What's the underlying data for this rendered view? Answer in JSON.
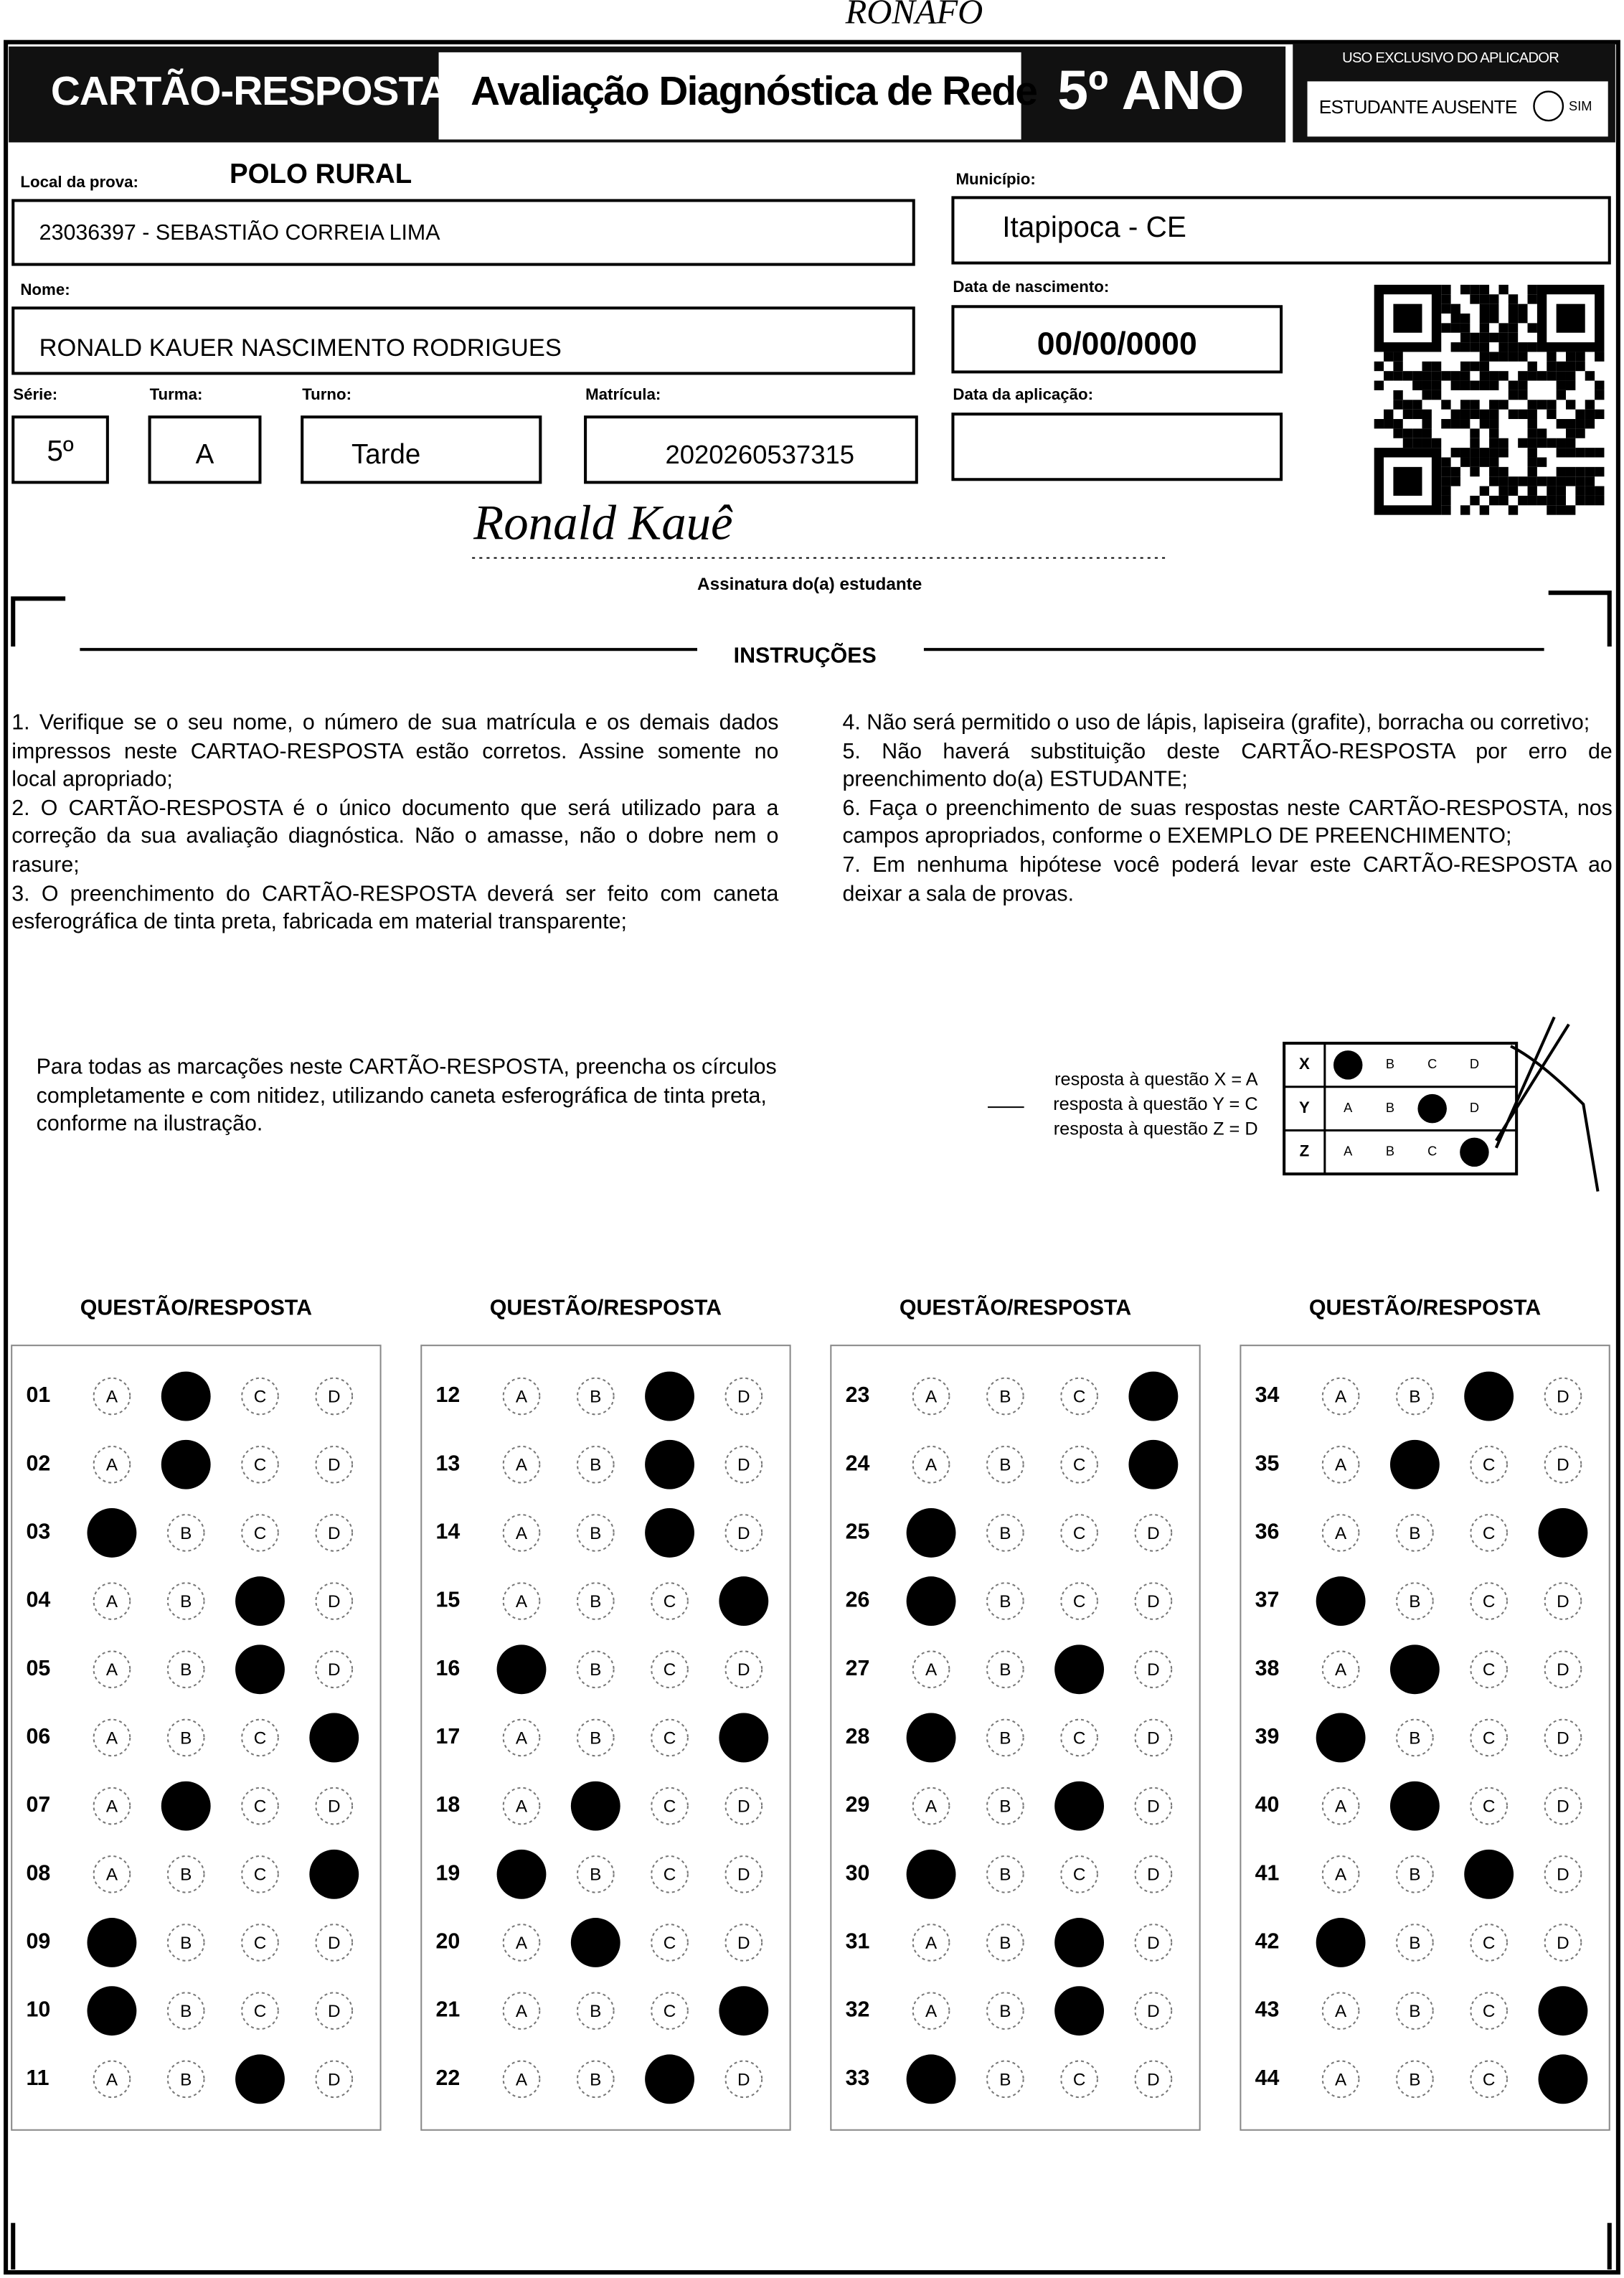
{
  "handwriting": {
    "top": "RONAFO",
    "signature": "Ronald Kauê"
  },
  "header": {
    "title": "CARTÃO-RESPOSTA",
    "subtitle": "Avaliação Diagnóstica de Rede",
    "grade": "5º ANO",
    "applicator_label": "USO EXCLUSIVO DO APLICADOR",
    "absent_label": "ESTUDANTE AUSENTE",
    "absent_option": "SIM"
  },
  "fields": {
    "local_label": "Local da prova:",
    "local_title": "POLO RURAL",
    "local_value": "23036397 - SEBASTIÃO CORREIA LIMA",
    "municipio_label": "Município:",
    "municipio_value": "Itapipoca - CE",
    "nome_label": "Nome:",
    "nome_value": "RONALD KAUER NASCIMENTO RODRIGUES",
    "nascimento_label": "Data de nascimento:",
    "nascimento_value": "00/00/0000",
    "serie_label": "Série:",
    "serie_value": "5º",
    "turma_label": "Turma:",
    "turma_value": "A",
    "turno_label": "Turno:",
    "turno_value": "Tarde",
    "matricula_label": "Matrícula:",
    "matricula_value": "2020260537315",
    "aplicacao_label": "Data da aplicação:",
    "signature_label": "Assinatura do(a) estudante"
  },
  "instructions": {
    "title": "INSTRUÇÕES",
    "items": [
      "1. Verifique se o seu nome, o número de sua matrícula e os demais dados impressos neste CARTAO-RESPOSTA estão corretos. Assine somente no local apropriado;",
      "2. O CARTÃO-RESPOSTA é o único documento que será utilizado para a correção da sua avaliação diagnóstica. Não o amasse, não o dobre nem o rasure;",
      "3. O preenchimento do CARTÃO-RESPOSTA deverá ser feito com caneta esferográfica de tinta preta, fabricada em material transparente;",
      "4. Não será permitido o uso de lápis, lapiseira (grafite), borracha ou corretivo;",
      "5. Não haverá substituição deste CARTÃO-RESPOSTA por erro de preenchimento do(a) ESTUDANTE;",
      "6. Faça o preenchimento de suas respostas neste CARTÃO-RESPOSTA, nos campos apropriados, conforme o EXEMPLO DE PREENCHIMENTO;",
      "7. Em nenhuma hipótese você poderá levar este CARTÃO-RESPOSTA ao deixar a sala de provas."
    ]
  },
  "example": {
    "text": "Para todas as marcações neste CARTÃO-RESPOSTA, preencha os círculos completamente e com nitidez, utilizando caneta esferográfica de tinta preta, conforme na ilustração.",
    "legend": [
      "resposta à questão X = A",
      "resposta à questão Y = C",
      "resposta à questão Z = D"
    ],
    "rows": [
      {
        "label": "X",
        "marked": "A"
      },
      {
        "label": "Y",
        "marked": "C"
      },
      {
        "label": "Z",
        "marked": "D"
      }
    ]
  },
  "answer_sheet": {
    "column_header": "QUESTÃO/RESPOSTA",
    "options": [
      "A",
      "B",
      "C",
      "D"
    ],
    "columns": [
      {
        "questions": [
          {
            "number": "01",
            "marked": "B"
          },
          {
            "number": "02",
            "marked": "B"
          },
          {
            "number": "03",
            "marked": "A"
          },
          {
            "number": "04",
            "marked": "C"
          },
          {
            "number": "05",
            "marked": "C"
          },
          {
            "number": "06",
            "marked": "D"
          },
          {
            "number": "07",
            "marked": "B"
          },
          {
            "number": "08",
            "marked": "D"
          },
          {
            "number": "09",
            "marked": "A"
          },
          {
            "number": "10",
            "marked": "A"
          },
          {
            "number": "11",
            "marked": "C"
          }
        ]
      },
      {
        "questions": [
          {
            "number": "12",
            "marked": "C"
          },
          {
            "number": "13",
            "marked": "C"
          },
          {
            "number": "14",
            "marked": "C"
          },
          {
            "number": "15",
            "marked": "D"
          },
          {
            "number": "16",
            "marked": "A"
          },
          {
            "number": "17",
            "marked": "D"
          },
          {
            "number": "18",
            "marked": "B"
          },
          {
            "number": "19",
            "marked": "A"
          },
          {
            "number": "20",
            "marked": "B"
          },
          {
            "number": "21",
            "marked": "D"
          },
          {
            "number": "22",
            "marked": "C"
          }
        ]
      },
      {
        "questions": [
          {
            "number": "23",
            "marked": "D"
          },
          {
            "number": "24",
            "marked": "D"
          },
          {
            "number": "25",
            "marked": "A"
          },
          {
            "number": "26",
            "marked": "A"
          },
          {
            "number": "27",
            "marked": "C"
          },
          {
            "number": "28",
            "marked": "A"
          },
          {
            "number": "29",
            "marked": "C"
          },
          {
            "number": "30",
            "marked": "A"
          },
          {
            "number": "31",
            "marked": "C"
          },
          {
            "number": "32",
            "marked": "C"
          },
          {
            "number": "33",
            "marked": "A"
          }
        ]
      },
      {
        "questions": [
          {
            "number": "34",
            "marked": "C"
          },
          {
            "number": "35",
            "marked": "B"
          },
          {
            "number": "36",
            "marked": "D"
          },
          {
            "number": "37",
            "marked": "A"
          },
          {
            "number": "38",
            "marked": "B"
          },
          {
            "number": "39",
            "marked": "A"
          },
          {
            "number": "40",
            "marked": "B"
          },
          {
            "number": "41",
            "marked": "C"
          },
          {
            "number": "42",
            "marked": "A"
          },
          {
            "number": "43",
            "marked": "D"
          },
          {
            "number": "44",
            "marked": "D"
          }
        ]
      }
    ]
  }
}
